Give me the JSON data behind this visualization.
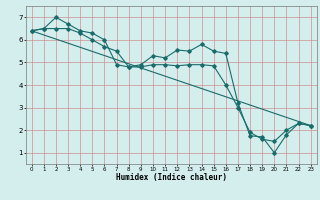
{
  "title": "",
  "xlabel": "Humidex (Indice chaleur)",
  "ylabel": "",
  "bg_color": "#d4eeee",
  "grid_color": "#d09090",
  "line_color": "#1a6b6b",
  "xlim": [
    -0.5,
    23.5
  ],
  "ylim": [
    0.5,
    7.5
  ],
  "xticks": [
    0,
    1,
    2,
    3,
    4,
    5,
    6,
    7,
    8,
    9,
    10,
    11,
    12,
    13,
    14,
    15,
    16,
    17,
    18,
    19,
    20,
    21,
    22,
    23
  ],
  "yticks": [
    1,
    2,
    3,
    4,
    5,
    6,
    7
  ],
  "line1_x": [
    0,
    1,
    2,
    3,
    4,
    5,
    6,
    7,
    8,
    9,
    10,
    11,
    12,
    13,
    14,
    15,
    16,
    17,
    18,
    19,
    20,
    21,
    22,
    23
  ],
  "line1_y": [
    6.4,
    6.5,
    7.0,
    6.7,
    6.4,
    6.3,
    6.0,
    4.9,
    4.8,
    4.9,
    5.3,
    5.2,
    5.55,
    5.5,
    5.8,
    5.5,
    5.4,
    3.2,
    1.75,
    1.7,
    1.0,
    1.8,
    2.3,
    2.2
  ],
  "line2_x": [
    0,
    1,
    2,
    3,
    4,
    5,
    6,
    7,
    8,
    9,
    10,
    11,
    12,
    13,
    14,
    15,
    16,
    17,
    18,
    19,
    20,
    21,
    22,
    23
  ],
  "line2_y": [
    6.4,
    6.5,
    6.5,
    6.5,
    6.3,
    6.0,
    5.7,
    5.5,
    4.8,
    4.8,
    4.9,
    4.9,
    4.85,
    4.9,
    4.9,
    4.85,
    4.0,
    3.0,
    1.9,
    1.6,
    1.5,
    2.0,
    2.3,
    2.2
  ],
  "line3_x": [
    0,
    23
  ],
  "line3_y": [
    6.4,
    2.2
  ],
  "marker": "D",
  "markersize": 1.8,
  "linewidth": 0.8
}
